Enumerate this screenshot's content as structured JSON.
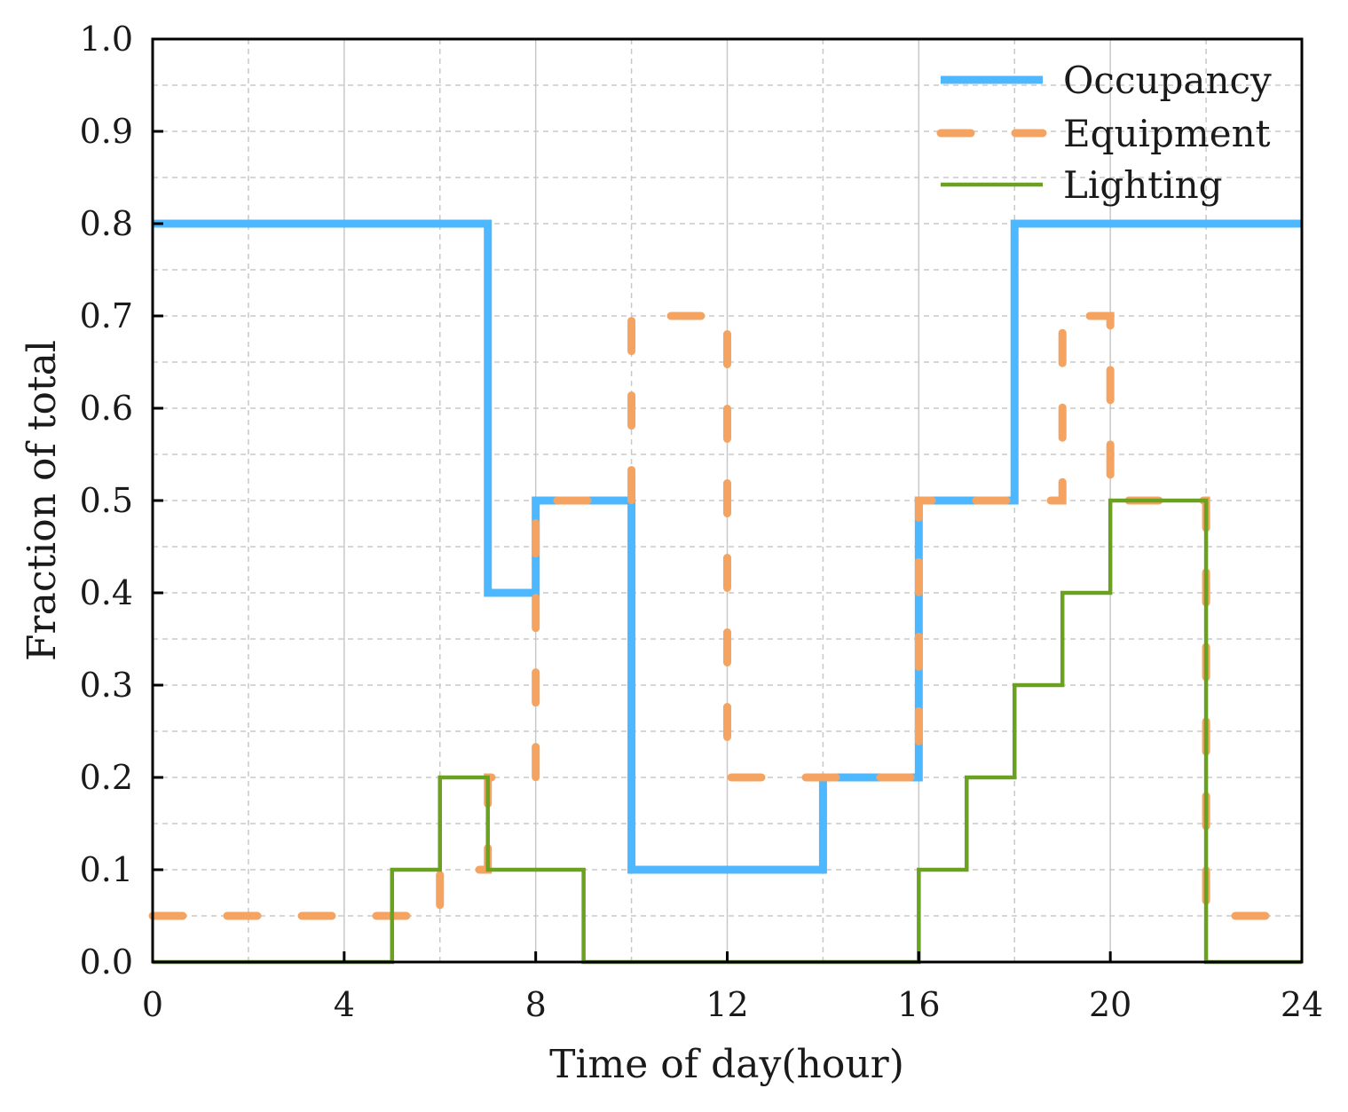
{
  "chart_data": {
    "type": "line",
    "step": "post",
    "xlabel": "Time of day(hour)",
    "ylabel": "Fraction of total",
    "xlim": [
      0,
      24
    ],
    "ylim": [
      0,
      1.0
    ],
    "x_ticks": [
      0,
      4,
      8,
      12,
      16,
      20,
      24
    ],
    "x_tick_labels": [
      "0",
      "4",
      "8",
      "12",
      "16",
      "20",
      "24"
    ],
    "y_ticks": [
      0.0,
      0.1,
      0.2,
      0.3,
      0.4,
      0.5,
      0.6,
      0.7,
      0.8,
      0.9,
      1.0
    ],
    "y_tick_labels": [
      "0.0",
      "0.1",
      "0.2",
      "0.3",
      "0.4",
      "0.5",
      "0.6",
      "0.7",
      "0.8",
      "0.9",
      "1.0"
    ],
    "x_minor_step": 2,
    "y_minor_step": 0.05,
    "grid": true,
    "legend_position": "top-right",
    "series": [
      {
        "name": "Occupancy",
        "color": "#4DB8FF",
        "style": "solid-thick",
        "points": [
          [
            0,
            0.8
          ],
          [
            7,
            0.8
          ],
          [
            7,
            0.4
          ],
          [
            8,
            0.4
          ],
          [
            8,
            0.5
          ],
          [
            10,
            0.5
          ],
          [
            10,
            0.1
          ],
          [
            14,
            0.1
          ],
          [
            14,
            0.2
          ],
          [
            16,
            0.2
          ],
          [
            16,
            0.5
          ],
          [
            18,
            0.5
          ],
          [
            18,
            0.8
          ],
          [
            24,
            0.8
          ]
        ]
      },
      {
        "name": "Equipment",
        "color": "#F4A460",
        "style": "dashed",
        "points": [
          [
            0,
            0.05
          ],
          [
            6,
            0.05
          ],
          [
            6,
            0.1
          ],
          [
            7,
            0.1
          ],
          [
            7,
            0.2
          ],
          [
            8,
            0.2
          ],
          [
            8,
            0.5
          ],
          [
            10,
            0.5
          ],
          [
            10,
            0.7
          ],
          [
            12,
            0.7
          ],
          [
            12,
            0.2
          ],
          [
            16,
            0.2
          ],
          [
            16,
            0.5
          ],
          [
            19,
            0.5
          ],
          [
            19,
            0.7
          ],
          [
            20,
            0.7
          ],
          [
            20,
            0.5
          ],
          [
            22,
            0.5
          ],
          [
            22,
            0.05
          ],
          [
            24,
            0.05
          ]
        ]
      },
      {
        "name": "Lighting",
        "color": "#6AA121",
        "style": "solid-thin",
        "points": [
          [
            0,
            0
          ],
          [
            5,
            0
          ],
          [
            5,
            0.1
          ],
          [
            6,
            0.1
          ],
          [
            6,
            0.2
          ],
          [
            7,
            0.2
          ],
          [
            7,
            0.1
          ],
          [
            9,
            0.1
          ],
          [
            9,
            0
          ],
          [
            16,
            0
          ],
          [
            16,
            0.1
          ],
          [
            17,
            0.1
          ],
          [
            17,
            0.2
          ],
          [
            18,
            0.2
          ],
          [
            18,
            0.3
          ],
          [
            19,
            0.3
          ],
          [
            19,
            0.4
          ],
          [
            20,
            0.4
          ],
          [
            20,
            0.5
          ],
          [
            22,
            0.5
          ],
          [
            22,
            0
          ],
          [
            24,
            0
          ]
        ]
      }
    ]
  }
}
